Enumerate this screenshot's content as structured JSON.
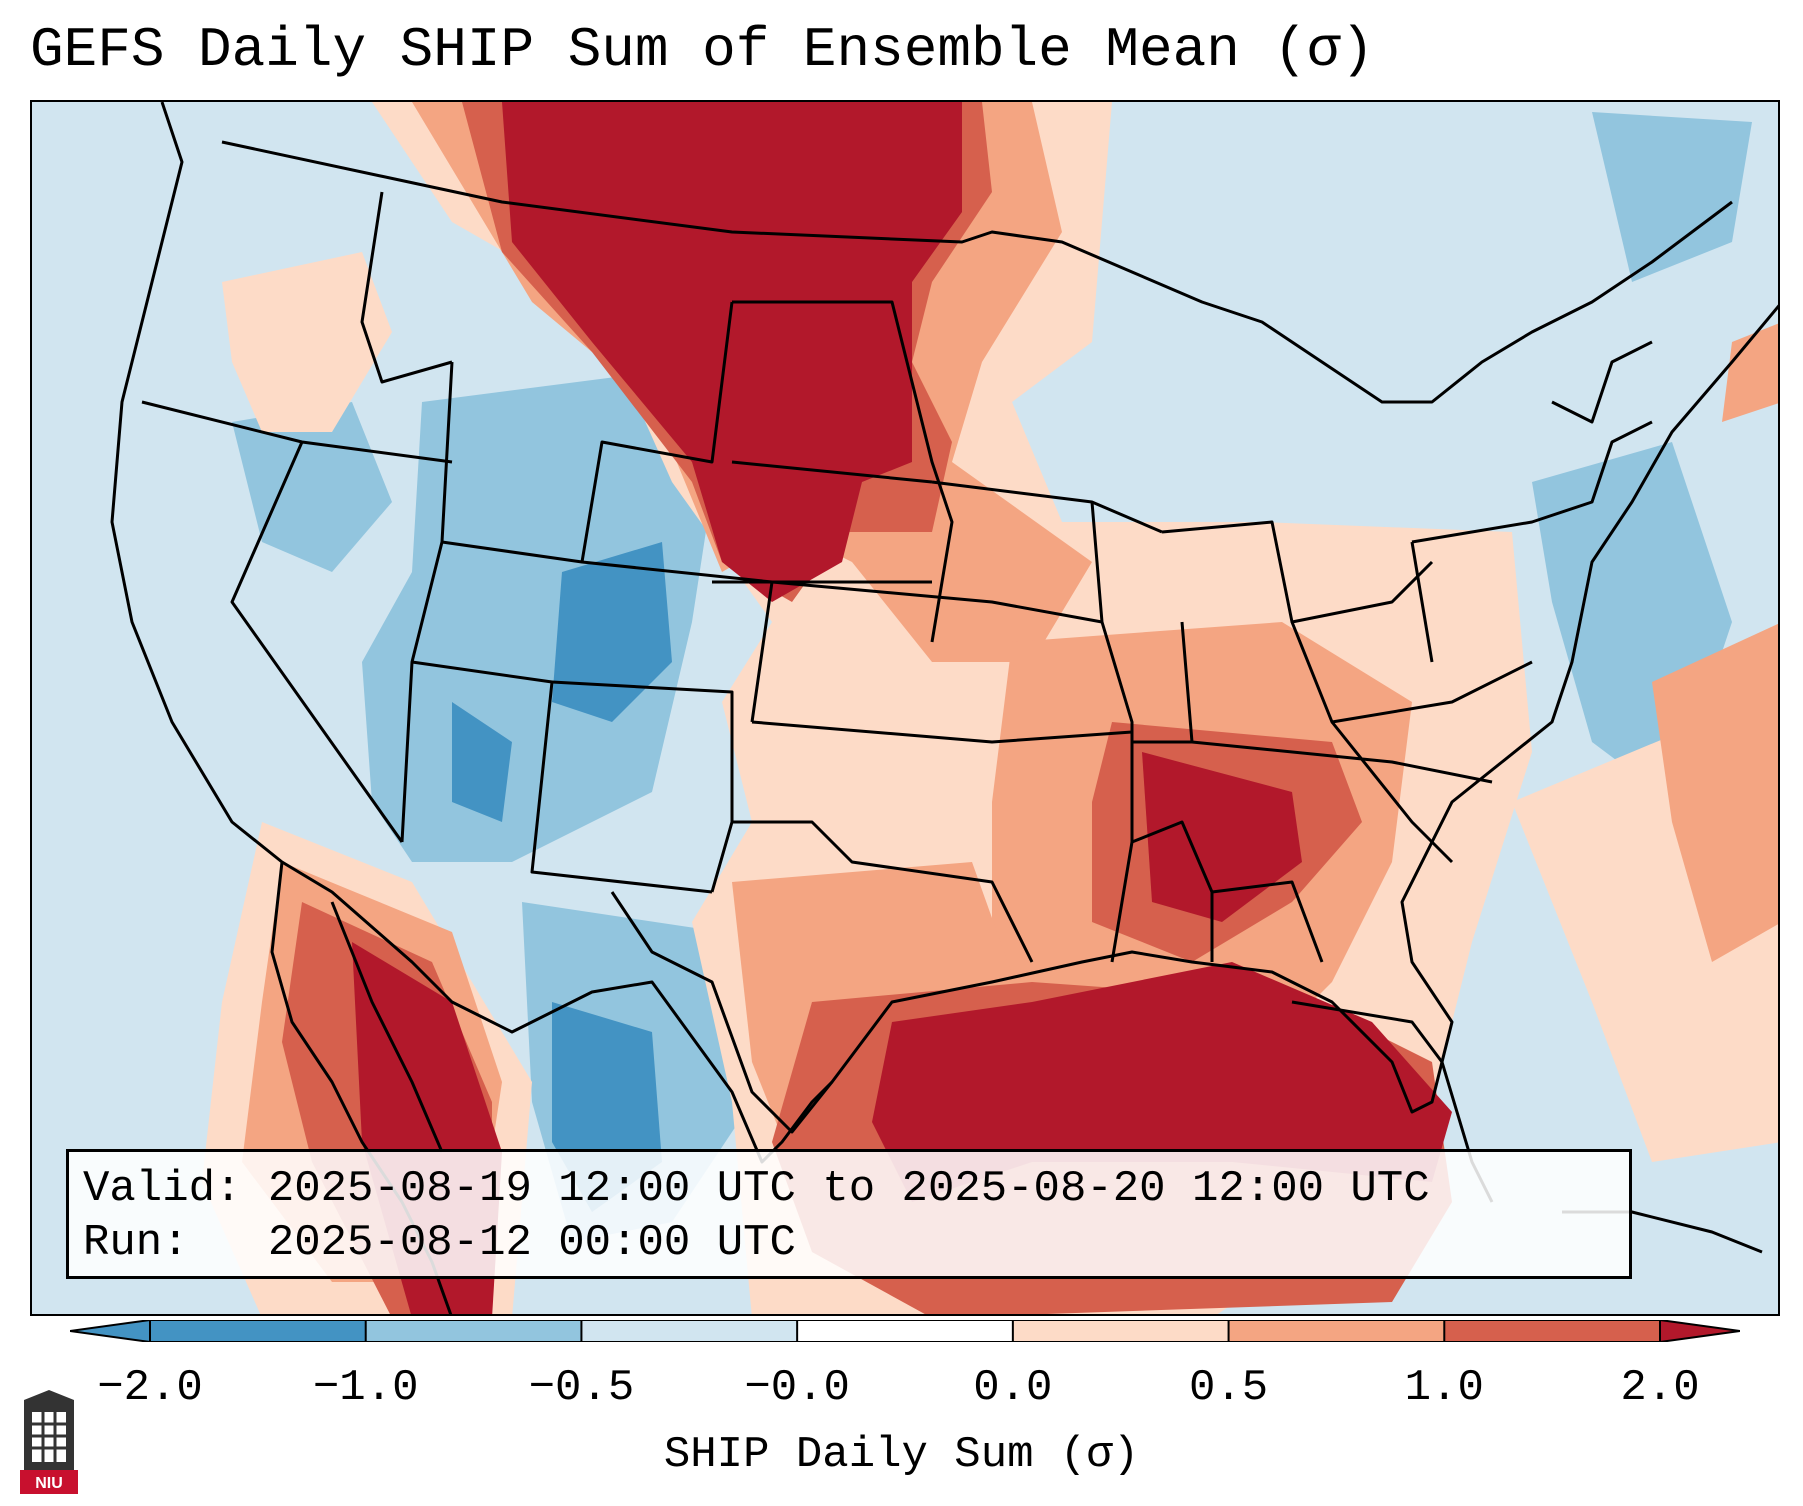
{
  "title": "GEFS Daily SHIP Sum of Ensemble Mean (σ)",
  "info": {
    "valid_line": "Valid: 2025-08-19 12:00 UTC to 2025-08-20 12:00 UTC",
    "run_line": "Run:   2025-08-12 00:00 UTC"
  },
  "colorbar": {
    "label": "SHIP Daily Sum (σ)",
    "ticks": [
      "−2.0",
      "−1.0",
      "−0.5",
      "−0.0",
      "0.0",
      "0.5",
      "1.0",
      "2.0"
    ],
    "colors": [
      "#4393c3",
      "#92c5de",
      "#d1e5f0",
      "#ffffff",
      "#fddbc7",
      "#f4a582",
      "#d6604d",
      "#b2182b"
    ]
  },
  "logo": {
    "text": "NIU",
    "name": "niu-logo"
  },
  "map": {
    "region": "Contiguous United States",
    "icons": [
      "state-boundaries",
      "coastlines"
    ]
  }
}
